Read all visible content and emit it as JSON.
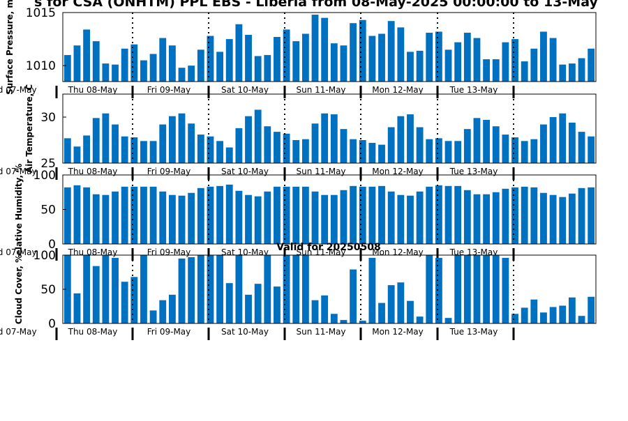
{
  "title": "s for CSA (ONHTM) PPL EBS  - Liberia from 08-May-2025 00:00:00 to 13-May",
  "subtitle": "Valid for 20250508",
  "colors": {
    "bar": "#0070c0",
    "axis": "#000000"
  },
  "x_axis": {
    "start_label": "ed 07-May",
    "day_labels": [
      "Thu 08-May",
      "Fri 09-May",
      "Sat 10-May",
      "Sun 11-May",
      "Mon 12-May",
      "Tue 13-May"
    ]
  },
  "chart_data": [
    {
      "type": "bar",
      "ylabel": "Surface Pressure, m",
      "ylim": [
        1008.5,
        1015
      ],
      "yticks": [
        1010,
        1015
      ],
      "values": [
        1011.0,
        1011.9,
        1013.4,
        1012.3,
        1010.2,
        1010.1,
        1011.6,
        1012.0,
        1010.5,
        1011.1,
        1012.6,
        1011.9,
        1009.8,
        1010.0,
        1011.5,
        1012.8,
        1011.3,
        1012.5,
        1013.9,
        1012.9,
        1010.9,
        1011.0,
        1012.7,
        1013.4,
        1012.3,
        1013.0,
        1014.8,
        1014.5,
        1012.1,
        1011.9,
        1014.0,
        1014.3,
        1012.8,
        1013.0,
        1014.2,
        1013.6,
        1011.3,
        1011.4,
        1013.1,
        1013.2,
        1011.5,
        1012.2,
        1013.1,
        1012.6,
        1010.6,
        1010.6,
        1012.2,
        1012.5,
        1010.4,
        1011.6,
        1013.2,
        1012.6,
        1010.1,
        1010.2,
        1010.7,
        1011.6
      ]
    },
    {
      "type": "bar",
      "ylabel": "Air Temperature, C",
      "ylim": [
        25,
        32.5
      ],
      "yticks": [
        25,
        30
      ],
      "values": [
        27.7,
        26.8,
        28.0,
        29.9,
        30.4,
        29.2,
        27.9,
        27.8,
        27.4,
        27.4,
        29.2,
        30.1,
        30.4,
        29.3,
        28.1,
        27.9,
        27.4,
        26.7,
        28.8,
        30.1,
        30.8,
        29.0,
        28.4,
        28.2,
        27.5,
        27.6,
        29.3,
        30.4,
        30.3,
        28.7,
        27.6,
        27.5,
        27.2,
        27.0,
        28.9,
        30.1,
        30.3,
        28.9,
        27.6,
        27.7,
        27.4,
        27.4,
        28.7,
        29.9,
        29.7,
        29.0,
        28.1,
        27.8,
        27.4,
        27.6,
        29.2,
        30.0,
        30.4,
        29.4,
        28.4,
        27.9
      ]
    },
    {
      "type": "bar",
      "ylabel": "elative Humidity, %",
      "ylim": [
        0,
        100
      ],
      "yticks": [
        0,
        50,
        100
      ],
      "values": [
        82,
        85,
        82,
        72,
        71,
        76,
        83,
        83,
        83,
        83,
        76,
        71,
        70,
        74,
        81,
        83,
        84,
        86,
        77,
        71,
        69,
        76,
        83,
        83,
        83,
        83,
        76,
        71,
        71,
        78,
        84,
        83,
        83,
        84,
        76,
        71,
        70,
        76,
        83,
        85,
        84,
        84,
        78,
        72,
        72,
        75,
        80,
        82,
        83,
        82,
        74,
        71,
        68,
        73,
        81,
        82
      ]
    },
    {
      "type": "bar",
      "ylabel": "Cloud Cover, %",
      "ylim": [
        0,
        100
      ],
      "yticks": [
        0,
        50,
        100
      ],
      "values": [
        100,
        44,
        100,
        84,
        100,
        96,
        61,
        68,
        100,
        19,
        34,
        42,
        95,
        97,
        100,
        100,
        100,
        59,
        100,
        42,
        58,
        100,
        54,
        100,
        100,
        100,
        34,
        41,
        14,
        5,
        79,
        4,
        96,
        30,
        56,
        60,
        33,
        10,
        100,
        96,
        8,
        100,
        100,
        100,
        100,
        100,
        96,
        14,
        23,
        35,
        16,
        24,
        26,
        38,
        11,
        39
      ]
    }
  ]
}
